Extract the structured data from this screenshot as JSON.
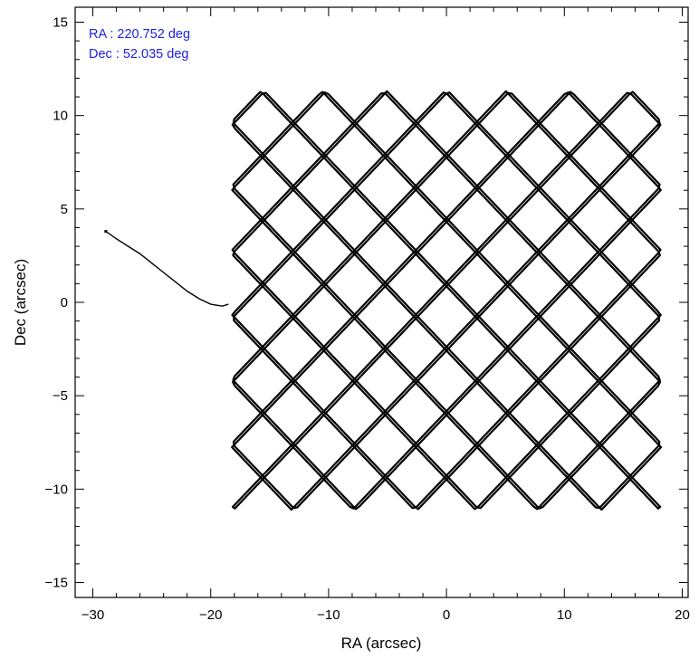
{
  "chart_data": {
    "type": "line",
    "title": "",
    "xlabel": "RA (arcsec)",
    "ylabel": "Dec (arcsec)",
    "xlim": [
      -31.5,
      20.5
    ],
    "ylim": [
      -15.8,
      15.8
    ],
    "x_ticks": [
      -30,
      -20,
      -10,
      0,
      10,
      20
    ],
    "y_ticks": [
      -15,
      -10,
      -5,
      0,
      5,
      10,
      15
    ],
    "x_tick_labels": [
      "−30",
      "−20",
      "−10",
      "0",
      "10",
      "20"
    ],
    "y_tick_labels": [
      "−15",
      "−10",
      "−5",
      "0",
      "5",
      "10",
      "15"
    ],
    "grid": false,
    "annotations": [
      "RA : 220.752 deg",
      "Dec : 52.035 deg"
    ],
    "annotation_color": "#1f22e0",
    "line_color": "#000000",
    "series": [
      {
        "role": "slew",
        "x": [
          -28.9,
          -28.0,
          -27.0,
          -26.0,
          -25.0,
          -24.0,
          -23.0,
          -22.0,
          -21.0,
          -20.0,
          -19.0,
          -18.5
        ],
        "y": [
          3.8,
          3.4,
          3.0,
          2.6,
          2.1,
          1.6,
          1.1,
          0.6,
          0.2,
          -0.1,
          -0.2,
          -0.1
        ]
      },
      {
        "role": "dither",
        "center": [
          0.0,
          0.1
        ],
        "x_amplitude": 18.2,
        "y_amplitude": 11.2,
        "x_frequency": 13,
        "y_frequency": 14,
        "phase": 0.35,
        "samples": 3000
      }
    ]
  }
}
